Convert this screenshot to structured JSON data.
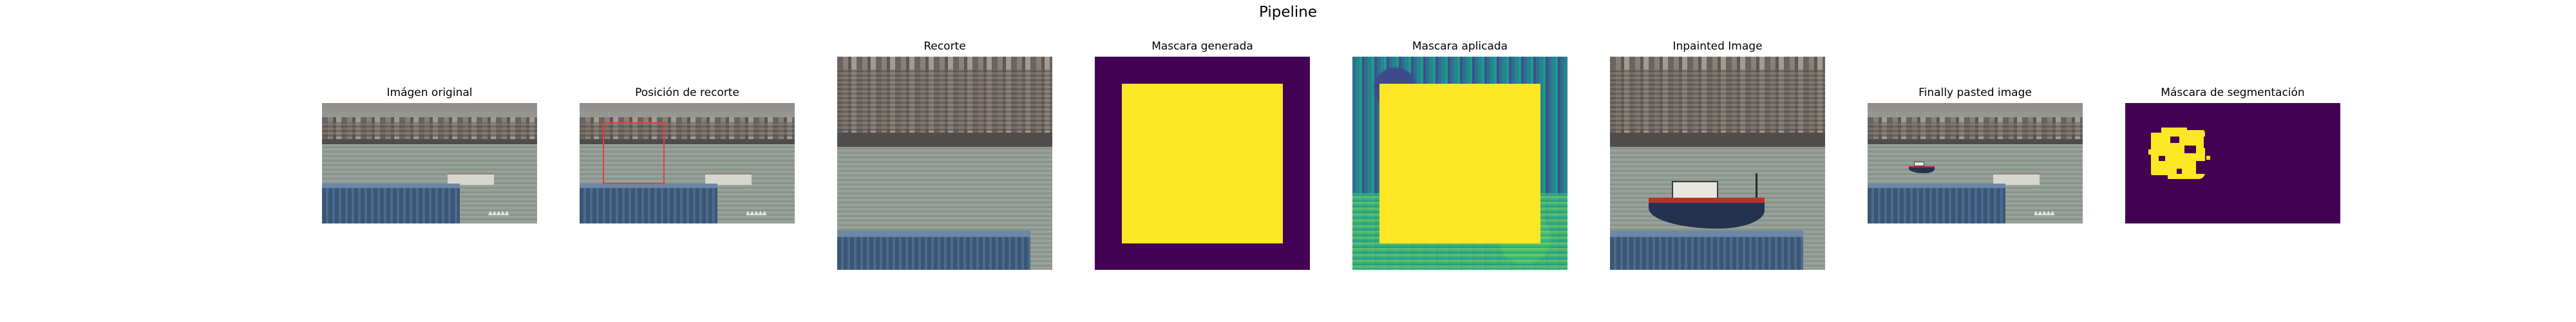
{
  "figure": {
    "title": "Pipeline",
    "panels": [
      {
        "id": "original",
        "title": "Imágen original"
      },
      {
        "id": "crop_position",
        "title": "Posición de recorte"
      },
      {
        "id": "crop",
        "title": "Recorte"
      },
      {
        "id": "generated_mask",
        "title": "Mascara generada"
      },
      {
        "id": "applied_mask",
        "title": "Mascara aplicada"
      },
      {
        "id": "inpainted",
        "title": "Inpainted Image"
      },
      {
        "id": "pasted",
        "title": "Finally pasted image"
      },
      {
        "id": "segmentation_mask",
        "title": "Máscara de segmentación"
      }
    ]
  },
  "colors": {
    "mask_background": "#440154",
    "mask_foreground": "#fde725",
    "crop_box": "#e53c3c"
  }
}
